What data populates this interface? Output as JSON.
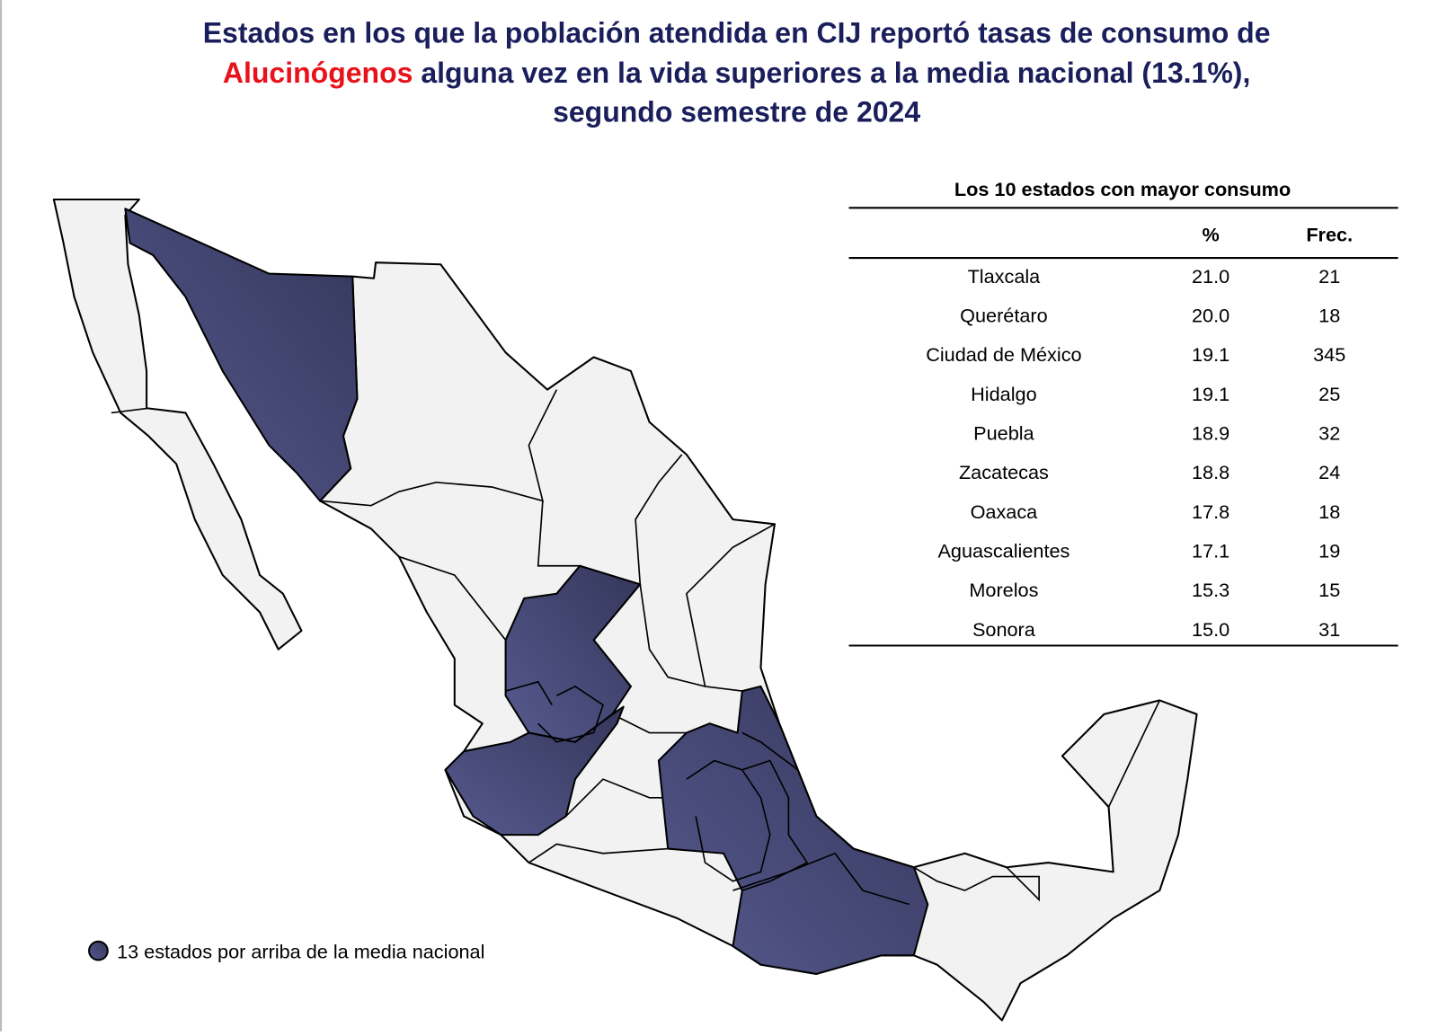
{
  "title": {
    "line1": "Estados en los que la población atendida en CIJ reportó tasas de consumo  de",
    "highlight": "Alucinógenos",
    "line2": "alguna vez en la vida superiores a la media nacional (13.1%),",
    "line3": "segundo semestre de 2024"
  },
  "table": {
    "title": "Los 10 estados con mayor consumo",
    "header": [
      "%",
      "Frec."
    ],
    "rows": [
      [
        "Tlaxcala",
        "21.0",
        "21"
      ],
      [
        "Querétaro",
        "20.0",
        "18"
      ],
      [
        "Ciudad de México",
        "19.1",
        "345"
      ],
      [
        "Hidalgo",
        "19.1",
        "25"
      ],
      [
        "Puebla",
        "18.9",
        "32"
      ],
      [
        "Zacatecas",
        "18.8",
        "24"
      ],
      [
        "Oaxaca",
        "17.8",
        "18"
      ],
      [
        "Aguascalientes",
        "17.1",
        "19"
      ],
      [
        "Morelos",
        "15.3",
        "15"
      ],
      [
        "Sonora",
        "15.0",
        "31"
      ]
    ]
  },
  "legend": {
    "label": "13 estados por arriba de la media nacional"
  }
}
